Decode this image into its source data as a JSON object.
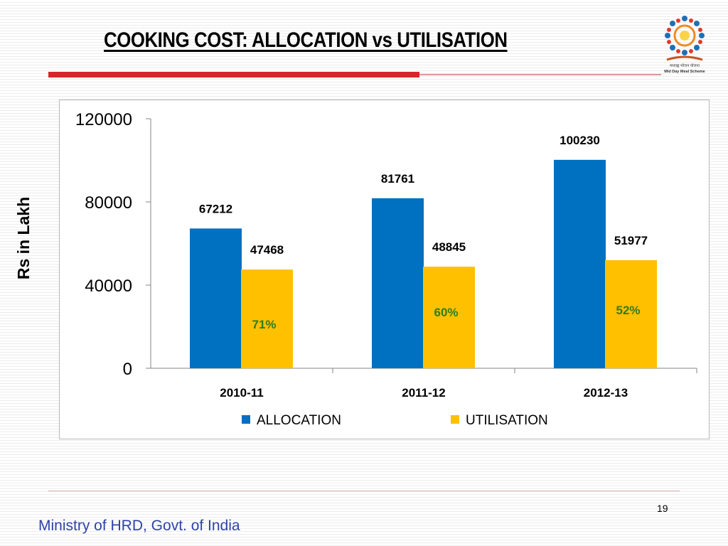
{
  "slide": {
    "title": "COOKING COST: ALLOCATION vs UTILISATION",
    "page_number": "19",
    "footer": "Ministry of HRD, Govt. of India",
    "logo_caption_1": "मध्याह्न भोजन योजना",
    "logo_caption_2": "Mid Day Meal Scheme"
  },
  "chart_data": {
    "type": "bar",
    "title": "",
    "xlabel": "",
    "ylabel": "Rs in Lakh",
    "ylim": [
      0,
      120000
    ],
    "yticks": [
      "0",
      "40000",
      "80000",
      "120000"
    ],
    "categories": [
      "2010-11",
      "2011-12",
      "2012-13"
    ],
    "series": [
      {
        "name": "ALLOCATION",
        "values": [
          67212,
          81761,
          100230
        ],
        "color": "#0070c0"
      },
      {
        "name": "UTILISATION",
        "values": [
          47468,
          48845,
          51977
        ],
        "color": "#ffc000"
      }
    ],
    "data_labels": {
      "ALLOCATION": [
        "67212",
        "81761",
        "100230"
      ],
      "UTILISATION": [
        "47468",
        "48845",
        "51977"
      ]
    },
    "percent_labels": [
      "71%",
      "60%",
      "52%"
    ],
    "percent_label_color": "#2e7d1e",
    "legend_position": "bottom",
    "grid": false
  }
}
